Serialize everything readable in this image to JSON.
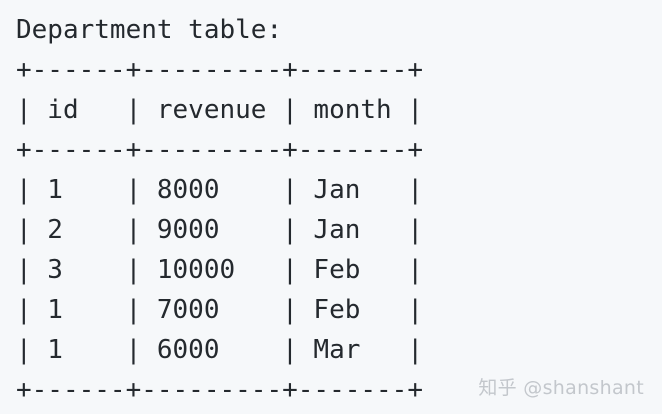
{
  "lines": [
    "Department table:",
    "+------+---------+-------+",
    "| id   | revenue | month |",
    "+------+---------+-------+",
    "| 1    | 8000    | Jan   |",
    "| 2    | 9000    | Jan   |",
    "| 3    | 10000   | Feb   |",
    "| 1    | 7000    | Feb   |",
    "| 1    | 6000    | Mar   |",
    "+------+---------+-------+"
  ],
  "watermark": "知乎 @shanshant"
}
